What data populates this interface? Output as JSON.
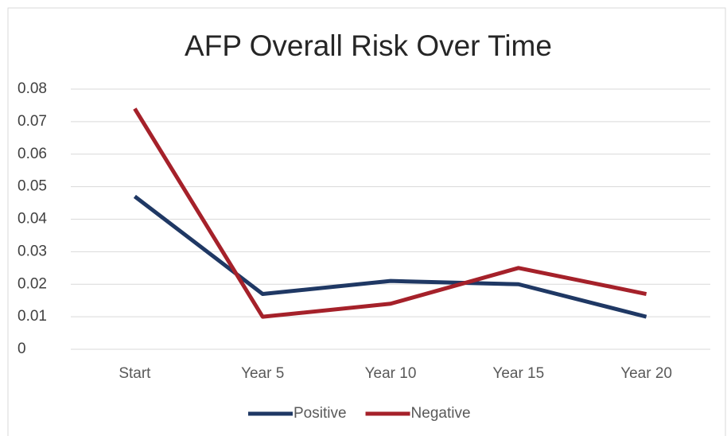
{
  "chart_data": {
    "type": "line",
    "title": "AFP Overall Risk Over Time",
    "categories": [
      "Start",
      "Year 5",
      "Year 10",
      "Year 15",
      "Year 20"
    ],
    "series": [
      {
        "name": "Positive",
        "color": "#1f3864",
        "values": [
          0.047,
          0.017,
          0.021,
          0.02,
          0.01
        ]
      },
      {
        "name": "Negative",
        "color": "#a5212a",
        "values": [
          0.074,
          0.01,
          0.014,
          0.025,
          0.017
        ]
      }
    ],
    "ylim": [
      0,
      0.08
    ],
    "yticks": [
      0,
      0.01,
      0.02,
      0.03,
      0.04,
      0.05,
      0.06,
      0.07,
      0.08
    ],
    "grid": true,
    "legend": "bottom"
  }
}
